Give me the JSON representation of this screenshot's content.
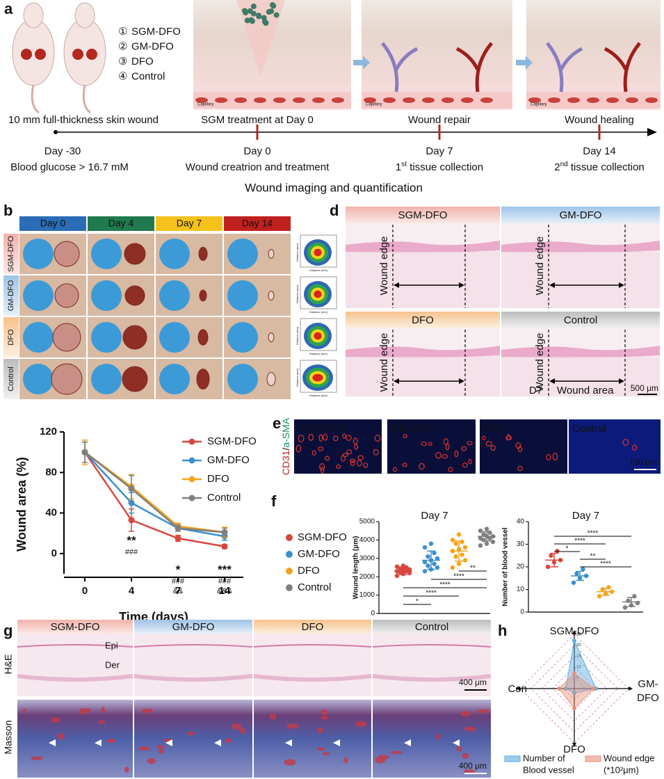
{
  "panel_a": {
    "label": "a",
    "groups": [
      {
        "marker": "①",
        "name": "SGM-DFO"
      },
      {
        "marker": "②",
        "name": "GM-DFO"
      },
      {
        "marker": "③",
        "name": "DFO"
      },
      {
        "marker": "④",
        "name": "Control"
      }
    ],
    "stage_labels": [
      "10 mm full-thickness skin wound",
      "SGM treatment at Day 0",
      "Wound repair",
      "Wound healing"
    ],
    "capillary": "Capillary",
    "timepoints": [
      {
        "day": "Day -30",
        "note": "Blood glucose > 16.7 mM"
      },
      {
        "day": "Day 0",
        "note": "Wound creatrion and treatment"
      },
      {
        "day": "Day 7",
        "ordinal": "1",
        "suffix": "st",
        "note": " tissue collection"
      },
      {
        "day": "Day 14",
        "ordinal": "2",
        "suffix": "nd",
        "note": " tissue collection"
      }
    ],
    "footer": "Wound imaging and quantification"
  },
  "panel_b": {
    "label": "b",
    "days": [
      {
        "name": "Day 0",
        "color": "#2b6cb6"
      },
      {
        "name": "Day 4",
        "color": "#1f7a4d"
      },
      {
        "name": "Day 7",
        "color": "#f5c21b"
      },
      {
        "name": "Day 14",
        "color": "#c0201e"
      }
    ],
    "groups": [
      "SGM-DFO",
      "GM-DFO",
      "DFO",
      "Control"
    ],
    "contour_axis": "Distance (mm)"
  },
  "panel_d": {
    "label": "d",
    "groups": [
      "SGM-DFO",
      "GM-DFO",
      "DFO",
      "Control"
    ],
    "edge_label": "Wound edge",
    "day": "D7",
    "area_label": "Wound area",
    "scale": "500 μm"
  },
  "panel_e": {
    "label": "e",
    "stain": [
      "CD31",
      "/",
      "a-SMA"
    ],
    "groups": [
      "SGM-DFO",
      "GM-DFO",
      "DFO",
      "Control"
    ],
    "scale": "100 μm"
  },
  "panel_f": {
    "label": "f"
  },
  "panel_g": {
    "label": "g",
    "groups": [
      "SGM-DFO",
      "GM-DFO",
      "DFO",
      "Control"
    ],
    "rows": [
      "H&E",
      "Masson"
    ],
    "layers": [
      "Epi",
      "Der"
    ],
    "scale": "400 μm"
  },
  "panel_h": {
    "label": "h"
  },
  "chart_data": [
    {
      "type": "line",
      "x_label": "Time (days)",
      "y_label": "Wound area (%)",
      "categories": [
        "0",
        "4",
        "7",
        "14"
      ],
      "ylim": [
        -20,
        120
      ],
      "yticks": [
        0,
        40,
        80,
        120
      ],
      "series": [
        {
          "name": "SGM-DFO",
          "color": "#d9463e",
          "values": [
            100,
            33,
            15,
            7
          ],
          "errors": [
            10,
            11,
            3,
            2
          ]
        },
        {
          "name": "GM-DFO",
          "color": "#3a8fcf",
          "values": [
            100,
            50,
            25,
            17
          ],
          "errors": [
            10,
            10,
            3,
            4
          ]
        },
        {
          "name": "DFO",
          "color": "#f5a31a",
          "values": [
            100,
            66,
            27,
            21
          ],
          "errors": [
            12,
            12,
            3,
            5
          ]
        },
        {
          "name": "Control",
          "color": "#7f7f7f",
          "values": [
            100,
            64,
            25,
            21
          ],
          "errors": [
            10,
            13,
            3,
            4
          ]
        }
      ],
      "annotations": [
        null,
        [
          "**",
          "###"
        ],
        [
          "*",
          "###",
          "&&"
        ],
        [
          "***",
          "###",
          "&&&"
        ]
      ]
    },
    {
      "type": "dot",
      "title": "Day 7",
      "y_label": "Wound length (μm)",
      "ylim": [
        0,
        5000
      ],
      "yticks": [
        0,
        1000,
        2000,
        3000,
        4000,
        5000
      ],
      "series": [
        {
          "name": "SGM-DFO",
          "color": "#d9463e",
          "values": [
            2050,
            2150,
            2200,
            2250,
            2300,
            2300,
            2350,
            2400,
            2450,
            2500,
            2550,
            2600
          ],
          "mean": 2300,
          "sd": 180
        },
        {
          "name": "GM-DFO",
          "color": "#3a8fcf",
          "values": [
            2300,
            2400,
            2500,
            2600,
            2700,
            2800,
            2900,
            3000,
            3100,
            3300,
            3600,
            3800
          ],
          "mean": 2900,
          "sd": 500
        },
        {
          "name": "DFO",
          "color": "#f5a31a",
          "values": [
            2500,
            2700,
            2900,
            3100,
            3200,
            3400,
            3500,
            3600,
            3800,
            3900,
            4000,
            4300
          ],
          "mean": 3400,
          "sd": 550
        },
        {
          "name": "Control",
          "color": "#7f7f7f",
          "values": [
            3700,
            3800,
            3900,
            4000,
            4100,
            4100,
            4200,
            4200,
            4300,
            4400,
            4500,
            4600
          ],
          "mean": 4200,
          "sd": 250
        }
      ],
      "comparisons": [
        {
          "pair": [
            0,
            1
          ],
          "label": "*"
        },
        {
          "pair": [
            0,
            2
          ],
          "label": "****"
        },
        {
          "pair": [
            0,
            3
          ],
          "label": "****"
        },
        {
          "pair": [
            1,
            3
          ],
          "label": "****"
        },
        {
          "pair": [
            2,
            3
          ],
          "label": "**"
        }
      ]
    },
    {
      "type": "dot",
      "title": "Day 7",
      "y_label": "Number of blood vessel",
      "ylim": [
        0,
        40
      ],
      "yticks": [
        0,
        10,
        20,
        30,
        40
      ],
      "series": [
        {
          "color": "#d9463e",
          "values": [
            20,
            22,
            23,
            25,
            27
          ],
          "mean": 23,
          "sd": 3
        },
        {
          "color": "#3a8fcf",
          "values": [
            13,
            15,
            16,
            17,
            19
          ],
          "mean": 16,
          "sd": 2
        },
        {
          "color": "#f5a31a",
          "values": [
            7,
            8,
            9,
            10,
            11
          ],
          "mean": 9,
          "sd": 1.5
        },
        {
          "color": "#7f7f7f",
          "values": [
            2,
            3,
            4,
            5,
            7
          ],
          "mean": 4.5,
          "sd": 2
        }
      ],
      "comparisons": [
        {
          "pair": [
            0,
            3
          ],
          "label": "****"
        },
        {
          "pair": [
            0,
            2
          ],
          "label": "****"
        },
        {
          "pair": [
            0,
            1
          ],
          "label": "*"
        },
        {
          "pair": [
            1,
            2
          ],
          "label": "**"
        },
        {
          "pair": [
            1,
            3
          ],
          "label": "****"
        }
      ]
    },
    {
      "type": "radar",
      "axes": [
        [
          "SGM-DFO"
        ],
        [
          "GM-",
          "DFO"
        ],
        [
          "DFO"
        ],
        [
          "Con"
        ]
      ],
      "rlim": [
        0,
        25
      ],
      "rticks": [
        5,
        10,
        15,
        20,
        25
      ],
      "series": [
        {
          "name": [
            "Number of",
            "Blood vessel"
          ],
          "color": "#5aaee0",
          "values": [
            22,
            10,
            2,
            4
          ]
        },
        {
          "name": [
            "Wound edge",
            "(*10²μm)"
          ],
          "color": "#e8907a",
          "values": [
            7,
            9,
            9,
            7
          ]
        }
      ]
    }
  ]
}
